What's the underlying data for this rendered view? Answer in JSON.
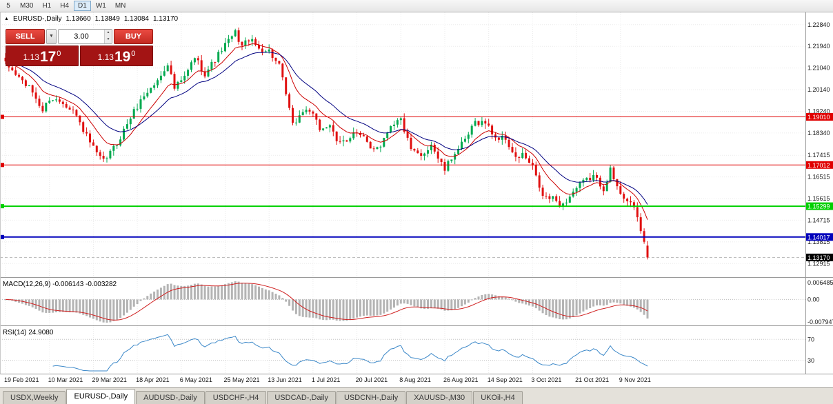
{
  "toolbar": {
    "periods": [
      {
        "label": "5",
        "active": false
      },
      {
        "label": "M30",
        "active": false
      },
      {
        "label": "H1",
        "active": false
      },
      {
        "label": "H4",
        "active": false
      },
      {
        "label": "D1",
        "active": true
      },
      {
        "label": "W1",
        "active": false
      },
      {
        "label": "MN",
        "active": false
      }
    ]
  },
  "icons": {
    "collapse_arrow": "▲",
    "dropdown_arrow": "▼",
    "spin_up": "▲",
    "spin_down": "▼"
  },
  "symbol_header": {
    "title": "EURUSD-,Daily",
    "open": "1.13660",
    "high": "1.13849",
    "low": "1.13084",
    "close": "1.13170"
  },
  "trade_panel": {
    "sell_label": "SELL",
    "buy_label": "BUY",
    "volume": "3.00",
    "sell_price": {
      "small": "1.13",
      "big": "17",
      "pip": "0"
    },
    "buy_price": {
      "small": "1.13",
      "big": "19",
      "pip": "0"
    }
  },
  "chart_data": {
    "type": "candlestick",
    "symbol": "EURUSD-",
    "timeframe": "Daily",
    "y_axis_labels": [
      "1.22840",
      "1.21940",
      "1.21040",
      "1.20140",
      "1.19240",
      "1.18340",
      "1.17415",
      "1.16515",
      "1.15615",
      "1.14715",
      "1.13815",
      "1.12915"
    ],
    "price_range": {
      "top": 1.2335,
      "bottom": 1.1235
    },
    "x_labels": [
      "19 Feb 2021",
      "10 Mar 2021",
      "29 Mar 2021",
      "18 Apr 2021",
      "6 May 2021",
      "25 May 2021",
      "13 Jun 2021",
      "1 Jul 2021",
      "20 Jul 2021",
      "8 Aug 2021",
      "26 Aug 2021",
      "14 Sep 2021",
      "3 Oct 2021",
      "21 Oct 2021",
      "9 Nov 2021"
    ],
    "x_label_indices": [
      0,
      13,
      26,
      39,
      52,
      65,
      78,
      91,
      104,
      117,
      130,
      143,
      156,
      169,
      182
    ],
    "candle_count": 191,
    "colors": {
      "up": "#00a94f",
      "down": "#e01010"
    },
    "trend_anchors": [
      [
        0,
        1.212
      ],
      [
        4,
        1.2065
      ],
      [
        8,
        1.2005
      ],
      [
        11,
        1.1925
      ],
      [
        13,
        1.1978
      ],
      [
        17,
        1.1962
      ],
      [
        20,
        1.193
      ],
      [
        24,
        1.182
      ],
      [
        27,
        1.1745
      ],
      [
        29,
        1.1715
      ],
      [
        33,
        1.179
      ],
      [
        37,
        1.19
      ],
      [
        41,
        1.199
      ],
      [
        45,
        1.205
      ],
      [
        48,
        1.2125
      ],
      [
        50,
        1.202
      ],
      [
        53,
        1.2065
      ],
      [
        56,
        1.215
      ],
      [
        59,
        1.208
      ],
      [
        62,
        1.214
      ],
      [
        65,
        1.22
      ],
      [
        68,
        1.225
      ],
      [
        70,
        1.2195
      ],
      [
        72,
        1.2225
      ],
      [
        75,
        1.2185
      ],
      [
        78,
        1.2175
      ],
      [
        81,
        1.211
      ],
      [
        83,
        1.1995
      ],
      [
        85,
        1.1865
      ],
      [
        88,
        1.1925
      ],
      [
        90,
        1.193
      ],
      [
        93,
        1.185
      ],
      [
        96,
        1.187
      ],
      [
        98,
        1.179
      ],
      [
        101,
        1.1805
      ],
      [
        103,
        1.184
      ],
      [
        106,
        1.181
      ],
      [
        108,
        1.177
      ],
      [
        111,
        1.1785
      ],
      [
        114,
        1.187
      ],
      [
        117,
        1.189
      ],
      [
        120,
        1.176
      ],
      [
        123,
        1.1735
      ],
      [
        126,
        1.179
      ],
      [
        128,
        1.173
      ],
      [
        130,
        1.168
      ],
      [
        133,
        1.1755
      ],
      [
        136,
        1.18
      ],
      [
        139,
        1.188
      ],
      [
        142,
        1.1878
      ],
      [
        145,
        1.1815
      ],
      [
        148,
        1.181
      ],
      [
        151,
        1.1725
      ],
      [
        153,
        1.1745
      ],
      [
        156,
        1.169
      ],
      [
        159,
        1.157
      ],
      [
        162,
        1.156
      ],
      [
        165,
        1.1535
      ],
      [
        168,
        1.159
      ],
      [
        171,
        1.163
      ],
      [
        174,
        1.1655
      ],
      [
        177,
        1.1605
      ],
      [
        179,
        1.168
      ],
      [
        181,
        1.1605
      ],
      [
        183,
        1.157
      ],
      [
        185,
        1.1545
      ],
      [
        187,
        1.148
      ],
      [
        189,
        1.138
      ],
      [
        190,
        1.1317
      ]
    ],
    "last_candle": {
      "open": 1.1366,
      "high": 1.13849,
      "low": 1.13084,
      "close": 1.1317
    },
    "levels": [
      {
        "price": 1.1901,
        "label": "1.19010",
        "color": "#e00000",
        "width": 1
      },
      {
        "price": 1.17012,
        "label": "1.17012",
        "color": "#e00000",
        "width": 1
      },
      {
        "price": 1.15299,
        "label": "1.15299",
        "color": "#00d000",
        "width": 2
      },
      {
        "price": 1.14017,
        "label": "1.14017",
        "color": "#0000bb",
        "width": 2
      }
    ],
    "current_price": {
      "value": 1.1317,
      "label": "1.13170",
      "color": "#000000"
    },
    "moving_averages": [
      {
        "period": 10,
        "color": "#cc0000"
      },
      {
        "period": 21,
        "color": "#000080"
      }
    ],
    "macd": {
      "label": "MACD(12,26,9)",
      "value_main": "-0.006143",
      "value_signal": "-0.003282",
      "axis_labels": [
        "0.006485",
        "0.00",
        "-0.007947"
      ],
      "ylim": [
        -0.007947,
        0.006485
      ],
      "histogram_color": "#b4b4b4",
      "signal_color": "#d02020"
    },
    "rsi": {
      "label": "RSI(14)",
      "value": "24.9080",
      "levels": [
        "70",
        "30"
      ],
      "level_values": [
        70,
        30
      ],
      "ylim": [
        10,
        90
      ],
      "color": "#3a87c8"
    }
  },
  "tabs": [
    {
      "label": "USDX,Weekly",
      "active": false
    },
    {
      "label": "EURUSD-,Daily",
      "active": true
    },
    {
      "label": "AUDUSD-,Daily",
      "active": false
    },
    {
      "label": "USDCHF-,H4",
      "active": false
    },
    {
      "label": "USDCAD-,Daily",
      "active": false
    },
    {
      "label": "USDCNH-,Daily",
      "active": false
    },
    {
      "label": "XAUUSD-,M30",
      "active": false
    },
    {
      "label": "UKOil-,H4",
      "active": false
    }
  ]
}
